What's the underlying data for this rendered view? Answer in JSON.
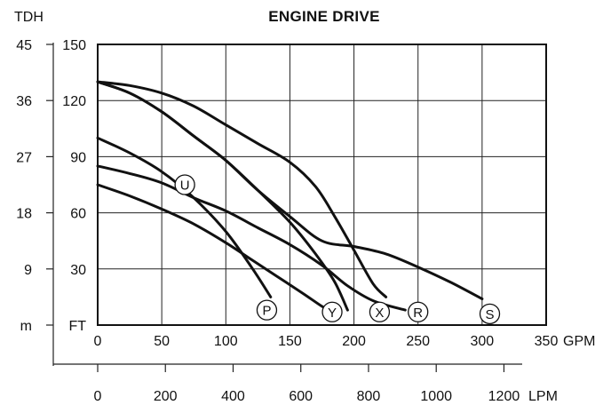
{
  "chart_data": {
    "type": "line",
    "title": "ENGINE DRIVE",
    "x_primary": {
      "unit": "GPM",
      "range": [
        0,
        350
      ],
      "ticks": [
        0,
        50,
        100,
        150,
        200,
        250,
        300,
        350
      ]
    },
    "x_secondary": {
      "unit": "LPM",
      "range": [
        0,
        1324.75
      ],
      "ticks": [
        0,
        200,
        400,
        600,
        800,
        1000,
        1200
      ]
    },
    "y_primary": {
      "unit": "FT",
      "range": [
        0,
        150
      ],
      "ticks": [
        0,
        30,
        60,
        90,
        120,
        150
      ],
      "tick_labels": [
        "FT",
        "30",
        "60",
        "90",
        "120",
        "150"
      ]
    },
    "y_secondary": {
      "title": "TDH",
      "unit": "m",
      "range": [
        0,
        45
      ],
      "ticks": [
        0,
        9,
        18,
        27,
        36,
        45
      ],
      "tick_labels": [
        "m",
        "9",
        "18",
        "27",
        "36",
        "45"
      ]
    },
    "grid": true,
    "series": [
      {
        "name": "U",
        "label_at": [
          68,
          75
        ],
        "points": [
          [
            0,
            130
          ],
          [
            25,
            128
          ],
          [
            50,
            124
          ],
          [
            75,
            117
          ],
          [
            100,
            107
          ],
          [
            125,
            97
          ],
          [
            150,
            87
          ],
          [
            170,
            74
          ],
          [
            185,
            58
          ],
          [
            200,
            40
          ],
          [
            215,
            22
          ],
          [
            225,
            15
          ]
        ]
      },
      {
        "name": "X",
        "label_at": [
          220,
          7
        ],
        "points": [
          [
            0,
            130
          ],
          [
            25,
            124
          ],
          [
            50,
            114
          ],
          [
            75,
            101
          ],
          [
            100,
            88
          ],
          [
            125,
            72
          ],
          [
            150,
            55
          ],
          [
            170,
            38
          ],
          [
            185,
            23
          ],
          [
            195,
            8
          ]
        ]
      },
      {
        "name": "P",
        "label_at": [
          132,
          8
        ],
        "points": [
          [
            0,
            100
          ],
          [
            25,
            92
          ],
          [
            50,
            82
          ],
          [
            75,
            68
          ],
          [
            100,
            50
          ],
          [
            120,
            31
          ],
          [
            135,
            15
          ]
        ]
      },
      {
        "name": "Y",
        "label_at": [
          183,
          7
        ],
        "points": [
          [
            0,
            85
          ],
          [
            25,
            81
          ],
          [
            50,
            76
          ],
          [
            75,
            68
          ],
          [
            100,
            61
          ],
          [
            125,
            52
          ],
          [
            150,
            43
          ],
          [
            175,
            32
          ],
          [
            195,
            21
          ],
          [
            215,
            13
          ],
          [
            240,
            8
          ]
        ]
      },
      {
        "name": "R",
        "label_at": [
          250,
          7
        ],
        "points": [
          [
            0,
            75
          ],
          [
            25,
            69
          ],
          [
            50,
            62
          ],
          [
            75,
            54
          ],
          [
            100,
            44
          ],
          [
            120,
            35
          ],
          [
            140,
            26
          ],
          [
            160,
            17
          ],
          [
            175,
            10
          ],
          [
            183,
            7
          ]
        ]
      },
      {
        "name": "S",
        "label_at": [
          306,
          6
        ],
        "points": [
          [
            0,
            130
          ],
          [
            25,
            124
          ],
          [
            50,
            114
          ],
          [
            75,
            101
          ],
          [
            100,
            88
          ],
          [
            125,
            72
          ],
          [
            150,
            58
          ],
          [
            175,
            45
          ],
          [
            200,
            42
          ],
          [
            225,
            38
          ],
          [
            250,
            31
          ],
          [
            275,
            23
          ],
          [
            300,
            14
          ]
        ]
      }
    ]
  }
}
